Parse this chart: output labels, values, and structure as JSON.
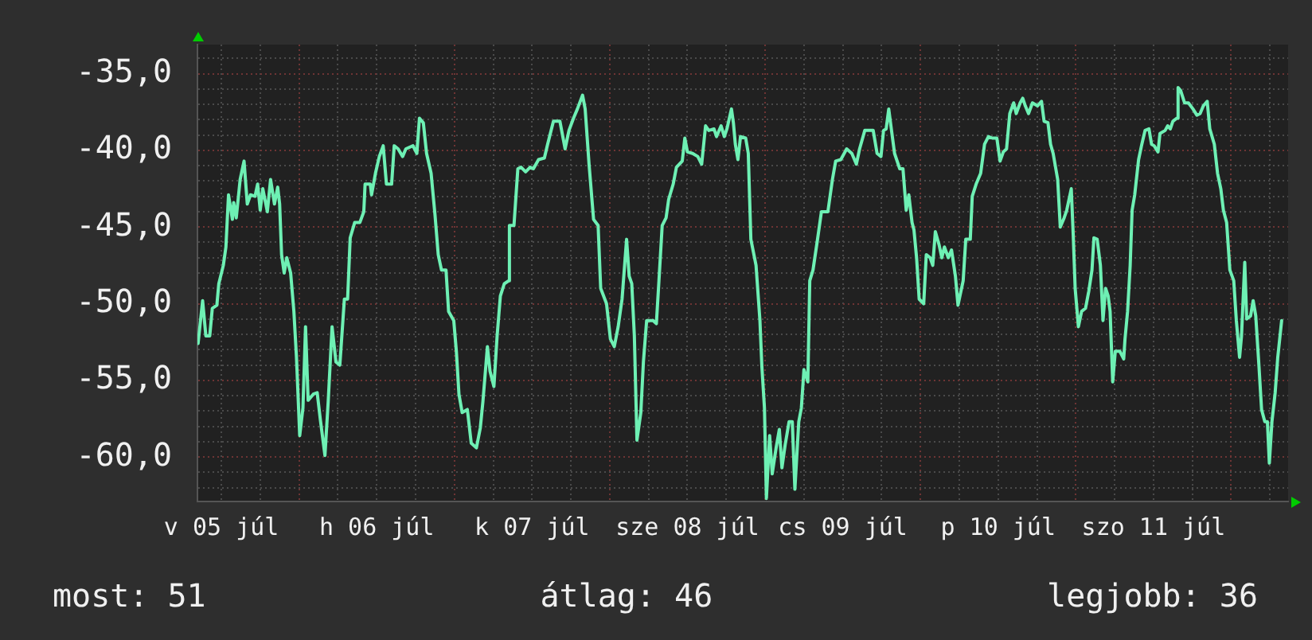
{
  "chart_data": {
    "type": "line",
    "xlim": [
      "--07-05T08:18",
      "--07-12T08:48"
    ],
    "ylim": [
      -62.9,
      -33.1
    ],
    "xticks": [
      {
        "value": "--07-05T12:00",
        "label": "v 05 júl"
      },
      {
        "value": "--07-05T18:00",
        "label": null
      },
      {
        "value": "--07-06T00:00",
        "label": null
      },
      {
        "value": "--07-06T06:00",
        "label": null
      },
      {
        "value": "--07-06T12:00",
        "label": "h 06 júl"
      },
      {
        "value": "--07-06T18:00",
        "label": null
      },
      {
        "value": "--07-07T00:00",
        "label": null
      },
      {
        "value": "--07-07T06:00",
        "label": null
      },
      {
        "value": "--07-07T12:00",
        "label": "k 07 júl"
      },
      {
        "value": "--07-07T18:00",
        "label": null
      },
      {
        "value": "--07-08T00:00",
        "label": null
      },
      {
        "value": "--07-08T06:00",
        "label": null
      },
      {
        "value": "--07-08T12:00",
        "label": "sze 08 júl"
      },
      {
        "value": "--07-08T18:00",
        "label": null
      },
      {
        "value": "--07-09T00:00",
        "label": null
      },
      {
        "value": "--07-09T06:00",
        "label": null
      },
      {
        "value": "--07-09T12:00",
        "label": "cs 09 júl"
      },
      {
        "value": "--07-09T18:00",
        "label": null
      },
      {
        "value": "--07-10T00:00",
        "label": null
      },
      {
        "value": "--07-10T06:00",
        "label": null
      },
      {
        "value": "--07-10T12:00",
        "label": "p 10 júl"
      },
      {
        "value": "--07-10T18:00",
        "label": null
      },
      {
        "value": "--07-11T00:00",
        "label": null
      },
      {
        "value": "--07-11T06:00",
        "label": null
      },
      {
        "value": "--07-11T12:00",
        "label": "szo 11 júl"
      },
      {
        "value": "--07-11T18:00",
        "label": null
      },
      {
        "value": "--07-12T00:00",
        "label": null
      },
      {
        "value": "--07-12T06:00",
        "label": null
      }
    ],
    "yticks": [
      {
        "value": -62,
        "label": null
      },
      {
        "value": -61,
        "label": null
      },
      {
        "value": -60,
        "label": "-60,0"
      },
      {
        "value": -59,
        "label": null
      },
      {
        "value": -58,
        "label": null
      },
      {
        "value": -57,
        "label": null
      },
      {
        "value": -56,
        "label": null
      },
      {
        "value": -55,
        "label": "-55,0"
      },
      {
        "value": -54,
        "label": null
      },
      {
        "value": -53,
        "label": null
      },
      {
        "value": -52,
        "label": null
      },
      {
        "value": -51,
        "label": null
      },
      {
        "value": -50,
        "label": "-50,0"
      },
      {
        "value": -49,
        "label": null
      },
      {
        "value": -48,
        "label": null
      },
      {
        "value": -47,
        "label": null
      },
      {
        "value": -46,
        "label": null
      },
      {
        "value": -45,
        "label": "-45,0"
      },
      {
        "value": -44,
        "label": null
      },
      {
        "value": -43,
        "label": null
      },
      {
        "value": -42,
        "label": null
      },
      {
        "value": -41,
        "label": null
      },
      {
        "value": -40,
        "label": "-40,0"
      },
      {
        "value": -39,
        "label": null
      },
      {
        "value": -38,
        "label": null
      },
      {
        "value": -37,
        "label": null
      },
      {
        "value": -36,
        "label": null
      },
      {
        "value": -35,
        "label": "-35,0"
      },
      {
        "value": -34,
        "label": null
      }
    ],
    "grid": true,
    "color": "#6ef0b4",
    "x": [
      "--07-05T08:24",
      "--07-05T09:06",
      "--07-05T09:36",
      "--07-05T10:12",
      "--07-05T10:36",
      "--07-05T11:18",
      "--07-05T11:36",
      "--07-05T12:18",
      "--07-05T12:42",
      "--07-05T13:06",
      "--07-05T13:42",
      "--07-05T13:54",
      "--07-05T14:18",
      "--07-05T14:54",
      "--07-05T15:30",
      "--07-05T16:00",
      "--07-05T16:30",
      "--07-05T17:12",
      "--07-05T17:36",
      "--07-05T18:00",
      "--07-05T18:24",
      "--07-05T19:06",
      "--07-05T19:36",
      "--07-05T20:12",
      "--07-05T20:42",
      "--07-05T21:00",
      "--07-05T21:18",
      "--07-05T21:42",
      "--07-05T22:06",
      "--07-05T22:42",
      "--07-05T23:12",
      "--07-05T23:36",
      "--07-06T00:06",
      "--07-06T00:36",
      "--07-06T01:00",
      "--07-06T01:24",
      "--07-06T02:12",
      "--07-06T02:48",
      "--07-06T03:18",
      "--07-06T04:00",
      "--07-06T04:30",
      "--07-06T05:06",
      "--07-06T05:42",
      "--07-06T06:18",
      "--07-06T07:00",
      "--07-06T07:30",
      "--07-06T07:54",
      "--07-06T08:36",
      "--07-06T09:24",
      "--07-06T10:00",
      "--07-06T10:12",
      "--07-06T11:00",
      "--07-06T11:12",
      "--07-06T11:48",
      "--07-06T12:24",
      "--07-06T13:00",
      "--07-06T13:30",
      "--07-06T14:18",
      "--07-06T14:42",
      "--07-06T15:18",
      "--07-06T16:00",
      "--07-06T16:30",
      "--07-06T17:36",
      "--07-06T18:12",
      "--07-06T18:36",
      "--07-06T19:12",
      "--07-06T19:42",
      "--07-06T20:24",
      "--07-06T21:00",
      "--07-06T21:30",
      "--07-06T22:00",
      "--07-06T22:42",
      "--07-06T23:06",
      "--07-06T23:54",
      "--07-07T00:18",
      "--07-07T00:42",
      "--07-07T01:12",
      "--07-07T02:00",
      "--07-07T02:36",
      "--07-07T03:24",
      "--07-07T04:00",
      "--07-07T04:24",
      "--07-07T05:06",
      "--07-07T05:30",
      "--07-07T06:06",
      "--07-07T06:36",
      "--07-07T07:06",
      "--07-07T07:42",
      "--07-07T08:24",
      "--07-07T08:30",
      "--07-07T09:12",
      "--07-07T09:48",
      "--07-07T10:18",
      "--07-07T11:00",
      "--07-07T11:42",
      "--07-07T12:12",
      "--07-07T13:00",
      "--07-07T13:54",
      "--07-07T14:24",
      "--07-07T15:18",
      "--07-07T16:18",
      "--07-07T17:06",
      "--07-07T17:42",
      "--07-07T18:24",
      "--07-07T19:00",
      "--07-07T19:48",
      "--07-07T20:12",
      "--07-07T20:48",
      "--07-07T21:30",
      "--07-07T22:12",
      "--07-07T22:36",
      "--07-07T23:30",
      "--07-08T00:06",
      "--07-08T00:42",
      "--07-08T01:18",
      "--07-08T01:54",
      "--07-08T02:36",
      "--07-08T03:00",
      "--07-08T03:24",
      "--07-08T03:48",
      "--07-08T04:12",
      "--07-08T04:48",
      "--07-08T05:12",
      "--07-08T05:42",
      "--07-08T06:42",
      "--07-08T07:12",
      "--07-08T07:36",
      "--07-08T08:06",
      "--07-08T08:42",
      "--07-08T09:06",
      "--07-08T09:48",
      "--07-08T10:18",
      "--07-08T11:12",
      "--07-08T11:36",
      "--07-08T12:00",
      "--07-08T12:48",
      "--07-08T13:36",
      "--07-08T14:12",
      "--07-08T14:48",
      "--07-08T15:18",
      "--07-08T16:06",
      "--07-08T16:30",
      "--07-08T17:12",
      "--07-08T17:42",
      "--07-08T18:06",
      "--07-08T18:48",
      "--07-08T19:06",
      "--07-08T19:24",
      "--07-08T19:48",
      "--07-08T20:12",
      "--07-08T21:00",
      "--07-08T21:24",
      "--07-08T21:48",
      "--07-08T22:36",
      "--07-08T23:12",
      "--07-08T23:30",
      "--07-08T23:54",
      "--07-09T00:12",
      "--07-09T00:42",
      "--07-09T01:06",
      "--07-09T01:42",
      "--07-09T02:12",
      "--07-09T02:36",
      "--07-09T03:06",
      "--07-09T03:42",
      "--07-09T04:12",
      "--07-09T04:36",
      "--07-09T05:12",
      "--07-09T05:36",
      "--07-09T06:00",
      "--07-09T06:36",
      "--07-09T06:54",
      "--07-09T07:24",
      "--07-09T08:06",
      "--07-09T08:42",
      "--07-09T09:42",
      "--07-09T10:24",
      "--07-09T10:54",
      "--07-09T11:42",
      "--07-09T12:36",
      "--07-09T13:24",
      "--07-09T14:06",
      "--07-09T14:36",
      "--07-09T15:24",
      "--07-09T16:42",
      "--07-09T17:18",
      "--07-09T17:54",
      "--07-09T18:18",
      "--07-09T18:42",
      "--07-09T19:06",
      "--07-09T19:30",
      "--07-09T20:00",
      "--07-09T20:48",
      "--07-09T21:18",
      "--07-09T21:48",
      "--07-09T22:12",
      "--07-09T22:42",
      "--07-09T23:00",
      "--07-09T23:24",
      "--07-09T23:48",
      "--07-10T00:30",
      "--07-10T00:54",
      "--07-10T01:30",
      "--07-10T01:54",
      "--07-10T02:18",
      "--07-10T02:54",
      "--07-10T03:18",
      "--07-10T03:42",
      "--07-10T04:18",
      "--07-10T04:48",
      "--07-10T05:24",
      "--07-10T05:48",
      "--07-10T06:36",
      "--07-10T07:00",
      "--07-10T07:42",
      "--07-10T08:00",
      "--07-10T08:36",
      "--07-10T09:18",
      "--07-10T09:54",
      "--07-10T10:30",
      "--07-10T11:06",
      "--07-10T11:48",
      "--07-10T12:18",
      "--07-10T12:48",
      "--07-10T13:18",
      "--07-10T13:48",
      "--07-10T14:24",
      "--07-10T14:48",
      "--07-10T15:24",
      "--07-10T15:48",
      "--07-10T16:12",
      "--07-10T16:42",
      "--07-10T17:18",
      "--07-10T18:06",
      "--07-10T18:42",
      "--07-10T19:06",
      "--07-10T19:42",
      "--07-10T20:06",
      "--07-10T20:30",
      "--07-10T21:12",
      "--07-10T21:36",
      "--07-10T22:12",
      "--07-10T22:36",
      "--07-10T23:18",
      "--07-10T23:36",
      "--07-10T23:54",
      "--07-11T00:24",
      "--07-11T00:54",
      "--07-11T01:30",
      "--07-11T02:00",
      "--07-11T02:30",
      "--07-11T02:48",
      "--07-11T03:18",
      "--07-11T03:48",
      "--07-11T04:12",
      "--07-11T04:36",
      "--07-11T05:00",
      "--07-11T05:18",
      "--07-11T05:42",
      "--07-11T06:06",
      "--07-11T06:48",
      "--07-11T07:24",
      "--07-11T07:36",
      "--07-11T08:00",
      "--07-11T08:24",
      "--07-11T08:42",
      "--07-11T09:06",
      "--07-11T09:42",
      "--07-11T10:12",
      "--07-11T10:42",
      "--07-11T11:18",
      "--07-11T11:42",
      "--07-11T12:06",
      "--07-11T12:42",
      "--07-11T13:00",
      "--07-11T13:48",
      "--07-11T14:12",
      "--07-11T14:36",
      "--07-11T15:00",
      "--07-11T15:36",
      "--07-11T15:48",
      "--07-11T16:12",
      "--07-11T16:48",
      "--07-11T17:24",
      "--07-11T18:06",
      "--07-11T18:42",
      "--07-11T19:12",
      "--07-11T19:42",
      "--07-11T20:18",
      "--07-11T20:42",
      "--07-11T21:24",
      "--07-11T21:54",
      "--07-11T22:24",
      "--07-11T22:48",
      "--07-11T23:18",
      "--07-11T23:48",
      "--07-12T00:24",
      "--07-12T00:48",
      "--07-12T01:18",
      "--07-12T01:36",
      "--07-12T02:06",
      "--07-12T02:24",
      "--07-12T03:00",
      "--07-12T03:24",
      "--07-12T03:48",
      "--07-12T04:18",
      "--07-12T04:42",
      "--07-12T05:12",
      "--07-12T05:36",
      "--07-12T05:54",
      "--07-12T06:18",
      "--07-12T06:48",
      "--07-12T07:12",
      "--07-12T07:48"
    ],
    "values": [
      -52.6,
      -49.8,
      -52.1,
      -52.1,
      -50.3,
      -50.1,
      -48.7,
      -47.5,
      -46.3,
      -42.9,
      -44.5,
      -43.4,
      -44.4,
      -41.9,
      -40.7,
      -43.5,
      -42.9,
      -43.0,
      -42.2,
      -43.9,
      -42.5,
      -44.0,
      -41.9,
      -43.5,
      -42.4,
      -43.5,
      -46.8,
      -48.0,
      -47.0,
      -48.0,
      -50.5,
      -53.5,
      -58.6,
      -56.8,
      -51.5,
      -56.3,
      -55.9,
      -55.8,
      -57.6,
      -59.9,
      -56.4,
      -51.5,
      -53.8,
      -54.0,
      -49.7,
      -49.7,
      -45.7,
      -44.7,
      -44.7,
      -44.0,
      -42.2,
      -42.2,
      -42.9,
      -41.5,
      -40.4,
      -39.7,
      -42.2,
      -42.2,
      -39.7,
      -39.9,
      -40.4,
      -39.9,
      -39.7,
      -40.2,
      -37.9,
      -38.2,
      -40.2,
      -41.5,
      -44.2,
      -46.8,
      -47.8,
      -47.8,
      -50.5,
      -51.1,
      -53.1,
      -55.9,
      -57.1,
      -56.9,
      -59.1,
      -59.4,
      -58.1,
      -56.4,
      -52.8,
      -54.4,
      -55.4,
      -52.1,
      -49.5,
      -48.7,
      -48.5,
      -44.9,
      -44.9,
      -41.2,
      -41.1,
      -41.4,
      -41.1,
      -41.2,
      -40.6,
      -40.5,
      -39.6,
      -38.1,
      -38.1,
      -39.9,
      -38.7,
      -37.9,
      -37.3,
      -36.4,
      -37.3,
      -40.9,
      -44.5,
      -44.9,
      -49.0,
      -50.0,
      -52.3,
      -52.8,
      -51.5,
      -49.7,
      -45.8,
      -48.2,
      -48.7,
      -52.1,
      -58.9,
      -57.1,
      -53.8,
      -51.1,
      -51.1,
      -51.3,
      -48.5,
      -44.9,
      -44.4,
      -43.2,
      -42.2,
      -41.1,
      -40.7,
      -39.2,
      -40.1,
      -40.2,
      -40.4,
      -40.9,
      -38.4,
      -38.7,
      -38.6,
      -39.1,
      -38.4,
      -39.1,
      -38.6,
      -37.3,
      -38.2,
      -39.6,
      -40.6,
      -39.1,
      -39.2,
      -40.2,
      -45.8,
      -47.5,
      -51.1,
      -54.1,
      -56.8,
      -62.7,
      -58.6,
      -61.1,
      -59.4,
      -58.2,
      -60.7,
      -59.2,
      -57.7,
      -57.7,
      -62.1,
      -57.7,
      -56.8,
      -54.3,
      -55.1,
      -48.5,
      -47.8,
      -45.8,
      -44.0,
      -44.0,
      -41.9,
      -40.7,
      -40.6,
      -39.9,
      -40.2,
      -40.9,
      -39.9,
      -38.7,
      -38.7,
      -40.2,
      -40.4,
      -38.7,
      -38.6,
      -37.3,
      -38.6,
      -40.2,
      -41.2,
      -41.2,
      -43.9,
      -42.9,
      -44.7,
      -45.2,
      -47.0,
      -49.7,
      -50.0,
      -46.8,
      -47.0,
      -47.5,
      -45.3,
      -46.2,
      -47.0,
      -46.3,
      -47.0,
      -46.5,
      -48.2,
      -50.1,
      -48.5,
      -45.8,
      -45.8,
      -43.0,
      -42.2,
      -41.5,
      -39.6,
      -39.1,
      -39.2,
      -39.2,
      -40.7,
      -40.1,
      -39.9,
      -37.6,
      -36.9,
      -37.6,
      -36.9,
      -36.6,
      -37.1,
      -37.6,
      -36.9,
      -37.1,
      -36.8,
      -38.1,
      -38.2,
      -39.6,
      -40.2,
      -41.9,
      -45.0,
      -44.4,
      -43.9,
      -42.5,
      -45.5,
      -49.0,
      -51.5,
      -50.5,
      -50.3,
      -49.2,
      -47.8,
      -45.7,
      -45.8,
      -47.5,
      -51.1,
      -49.0,
      -49.5,
      -50.5,
      -55.1,
      -53.1,
      -53.1,
      -53.6,
      -52.3,
      -50.5,
      -47.5,
      -43.9,
      -42.9,
      -40.6,
      -39.6,
      -38.7,
      -38.6,
      -39.6,
      -39.7,
      -40.1,
      -38.9,
      -38.7,
      -38.4,
      -38.6,
      -38.1,
      -37.9,
      -35.9,
      -36.1,
      -36.9,
      -36.9,
      -37.3,
      -37.7,
      -37.6,
      -37.1,
      -36.8,
      -38.6,
      -39.6,
      -41.5,
      -42.5,
      -43.9,
      -44.7,
      -47.8,
      -48.5,
      -51.1,
      -53.5,
      -52.1,
      -47.3,
      -51.0,
      -50.8,
      -49.8,
      -50.8,
      -54.1,
      -56.9,
      -57.7,
      -57.7,
      -60.4,
      -57.7,
      -55.8,
      -53.5,
      -51.1
    ],
    "annotations": [
      "most: 51",
      "átlag: 46",
      "legjobb: 36"
    ]
  }
}
